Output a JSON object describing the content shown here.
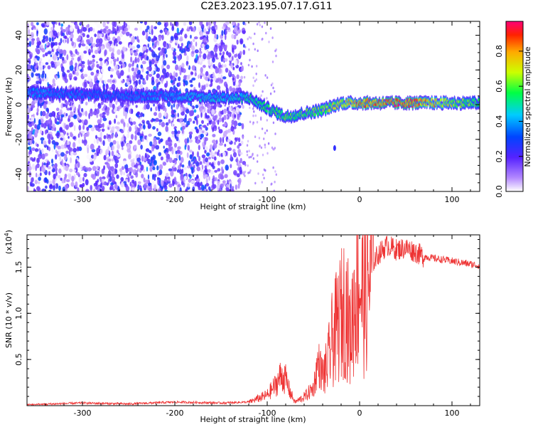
{
  "title": "C2E3.2023.195.07.17.G11",
  "chart_data": [
    {
      "type": "heatmap",
      "xlabel": "Height of straight line (km)",
      "ylabel": "Frequency (Hz)",
      "xlim": [
        -360,
        130
      ],
      "ylim": [
        -50,
        48
      ],
      "xticks": [
        -300,
        -200,
        -100,
        0,
        100
      ],
      "yticks": [
        -40,
        -20,
        0,
        20,
        40
      ],
      "colorbar": {
        "label": "Normalized spectral amplitude",
        "range": [
          0,
          0.97
        ],
        "ticks": [
          "0.0",
          "0.2",
          "0.4",
          "0.6",
          "0.8"
        ],
        "colormap": "rainbow"
      },
      "ridge": {
        "x": [
          -360,
          -300,
          -250,
          -200,
          -150,
          -120,
          -100,
          -80,
          -60,
          -40,
          -20,
          0,
          50,
          130
        ],
        "y": [
          7,
          6,
          5,
          5,
          4,
          4,
          -2,
          -7,
          -5,
          -3,
          1,
          1,
          1,
          1
        ],
        "amplitude": [
          0.4,
          0.35,
          0.35,
          0.4,
          0.45,
          0.5,
          0.55,
          0.6,
          0.6,
          0.65,
          0.7,
          0.85,
          0.9,
          0.55
        ]
      }
    },
    {
      "type": "line",
      "xlabel": "Height of straight line (km)",
      "ylabel": "SNR (10 * v/v)",
      "y_multiplier": "(x10",
      "y_multiplier_exp": "4",
      "y_multiplier_close": ")",
      "xlim": [
        -360,
        130
      ],
      "ylim": [
        0,
        1.85
      ],
      "xticks": [
        -300,
        -200,
        -100,
        0,
        100
      ],
      "yticks": [
        "0.5",
        "1.0",
        "1.5"
      ],
      "line_color": "#ee3333",
      "series": [
        {
          "x": [
            -360,
            -300,
            -250,
            -200,
            -150,
            -120,
            -110,
            -100,
            -90,
            -85,
            -80,
            -75,
            -70,
            -60,
            -50,
            -45,
            -40,
            -35,
            -30,
            -25,
            -20,
            -15,
            -10,
            -5,
            0,
            5,
            10,
            20,
            30,
            40,
            50,
            60,
            70,
            80,
            100,
            130
          ],
          "y": [
            0.01,
            0.03,
            0.02,
            0.04,
            0.03,
            0.04,
            0.08,
            0.12,
            0.25,
            0.35,
            0.3,
            0.15,
            0.04,
            0.1,
            0.2,
            0.5,
            0.35,
            0.45,
            0.75,
            0.9,
            1.05,
            1.2,
            0.8,
            1.3,
            1.45,
            1.2,
            1.5,
            1.65,
            1.75,
            1.7,
            1.72,
            1.68,
            1.62,
            1.6,
            1.57,
            1.52
          ]
        }
      ]
    }
  ]
}
